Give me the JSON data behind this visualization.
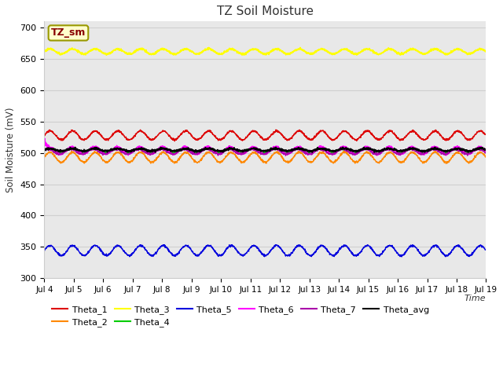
{
  "title": "TZ Soil Moisture",
  "ylabel": "Soil Moisture (mV)",
  "xlabel": "Time",
  "num_points": 2000,
  "x_tick_labels": [
    "Jul 4",
    "Jul 5",
    "Jul 6",
    "Jul 7",
    "Jul 8",
    "Jul 9",
    "Jul 10",
    "Jul 11",
    "Jul 12",
    "Jul 13",
    "Jul 14",
    "Jul 15",
    "Jul 16",
    "Jul 17",
    "Jul 18",
    "Jul 19"
  ],
  "ylim": [
    300,
    710
  ],
  "yticks": [
    300,
    350,
    400,
    450,
    500,
    550,
    600,
    650,
    700
  ],
  "series": [
    {
      "name": "Theta_1",
      "base": 528,
      "amp": 7,
      "freq": 1.3,
      "phase": 0.0,
      "color": "#dd0000",
      "lw": 1.0
    },
    {
      "name": "Theta_2",
      "base": 493,
      "amp": 8,
      "freq": 1.3,
      "phase": 0.0,
      "color": "#ff8800",
      "lw": 1.0
    },
    {
      "name": "Theta_3",
      "base": 662,
      "amp": 4,
      "freq": 1.3,
      "phase": 0.0,
      "color": "#ffff00",
      "lw": 1.2
    },
    {
      "name": "Theta_4",
      "base": 504,
      "amp": 3,
      "freq": 1.3,
      "phase": 0.3,
      "color": "#00cc00",
      "lw": 1.0
    },
    {
      "name": "Theta_5",
      "base": 344,
      "amp": 8,
      "freq": 1.3,
      "phase": 0.0,
      "color": "#0000dd",
      "lw": 1.0
    },
    {
      "name": "Theta_6",
      "base": 504,
      "amp": 6,
      "freq": 1.3,
      "phase": 0.2,
      "color": "#ff00ff",
      "lw": 1.0,
      "spike_start": true
    },
    {
      "name": "Theta_7",
      "base": 502,
      "amp": 4,
      "freq": 1.3,
      "phase": 0.5,
      "color": "#aa00aa",
      "lw": 1.0
    },
    {
      "name": "Theta_avg",
      "base": 505,
      "amp": 2,
      "freq": 1.3,
      "phase": 0.1,
      "color": "#000000",
      "lw": 1.3
    }
  ],
  "background_color": "#e8e8e8",
  "fig_facecolor": "#ffffff",
  "grid_color": "#d0d0d0",
  "legend_box_facecolor": "#ffffcc",
  "legend_box_edgecolor": "#999900",
  "legend_box_text": "TZ_sm",
  "legend_box_textcolor": "#880000",
  "legend_rows": [
    [
      "Theta_1",
      "#dd0000",
      "Theta_2",
      "#ff8800",
      "Theta_3",
      "#ffff00",
      "Theta_4",
      "#00cc00",
      "Theta_5",
      "#0000dd",
      "Theta_6",
      "#ff00ff"
    ],
    [
      "Theta_7",
      "#aa00aa",
      "Theta_avg",
      "#000000"
    ]
  ]
}
